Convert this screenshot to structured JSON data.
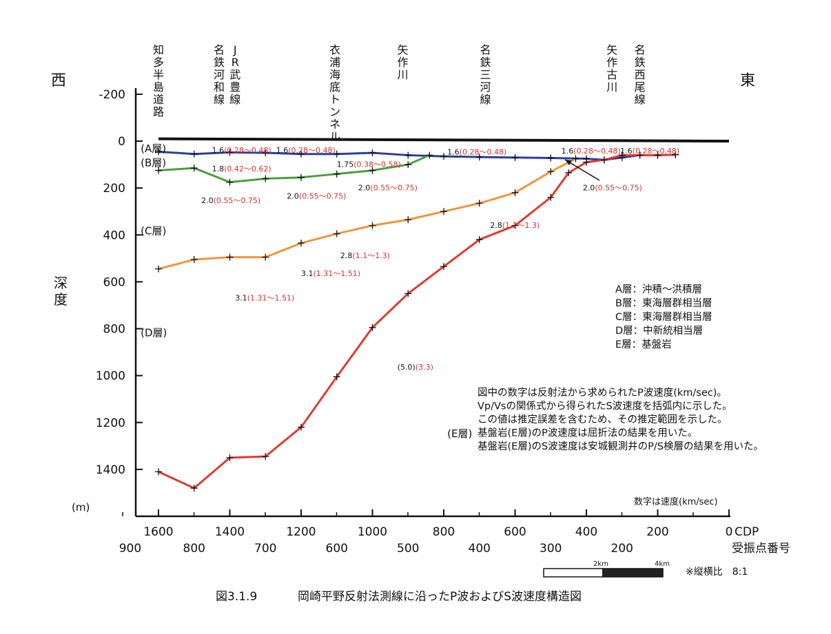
{
  "chart_data": {
    "type": "line",
    "title": "岡崎平野反射法測線に沿ったP波およびS波速度構造図",
    "figure_number": "図3.1.9",
    "ylabel": "深度",
    "yunit": "(m)",
    "ylim": [
      -200,
      1600
    ],
    "yticks": [
      "-200",
      "0",
      "200",
      "400",
      "600",
      "800",
      "1000",
      "1200",
      "1400"
    ],
    "xlim": [
      1600,
      0
    ],
    "x_axis_label": "CDP",
    "x_ticks_cdp": [
      "1600",
      "1400",
      "1200",
      "1000",
      "800",
      "600",
      "400",
      "200",
      "0"
    ],
    "x_axis_label2": "受振点番号",
    "x_ticks_shot": [
      "900",
      "800",
      "700",
      "600",
      "500",
      "400",
      "300",
      "200"
    ],
    "west_label": "西",
    "east_label": "東",
    "landmarks": [
      {
        "text": "知多半島道路",
        "x": 1600
      },
      {
        "text": "名鉄河和線",
        "x": 1430
      },
      {
        "text": "JR武豊線",
        "x": 1385
      },
      {
        "text": "衣浦海底トンネル",
        "x": 1105
      },
      {
        "text": "矢作川",
        "x": 915
      },
      {
        "text": "名鉄三河線",
        "x": 683
      },
      {
        "text": "矢作古川",
        "x": 328
      },
      {
        "text": "名鉄西尾線",
        "x": 250
      }
    ],
    "series": [
      {
        "color": "#111111",
        "x": [
          1600,
          0
        ],
        "y": [
          -10,
          0
        ]
      },
      {
        "color": "#2a3ca8",
        "x": [
          1600,
          1500,
          1400,
          1300,
          1200,
          1100,
          1000,
          900,
          800,
          700,
          600,
          500,
          400,
          350,
          300,
          250,
          200,
          150
        ],
        "y": [
          45,
          55,
          48,
          50,
          55,
          55,
          50,
          60,
          65,
          68,
          70,
          72,
          75,
          80,
          70,
          60,
          60,
          58
        ]
      },
      {
        "color": "#4a9e3a",
        "x": [
          1600,
          1500,
          1400,
          1300,
          1200,
          1100,
          1000,
          900,
          840
        ],
        "y": [
          125,
          115,
          175,
          160,
          155,
          140,
          125,
          100,
          60
        ]
      },
      {
        "color": "#f0953b",
        "x": [
          1600,
          1500,
          1400,
          1300,
          1200,
          1100,
          1000,
          900,
          800,
          700,
          600,
          500,
          430
        ],
        "y": [
          545,
          505,
          495,
          495,
          435,
          395,
          360,
          335,
          300,
          265,
          220,
          130,
          75
        ]
      },
      {
        "color": "#e03a2f",
        "x": [
          1600,
          1500,
          1400,
          1300,
          1200,
          1100,
          1000,
          900,
          800,
          700,
          600,
          500,
          450,
          400,
          350,
          300,
          250,
          200,
          150
        ],
        "y": [
          1410,
          1480,
          1350,
          1345,
          1220,
          1005,
          795,
          650,
          535,
          420,
          360,
          240,
          135,
          90,
          80,
          60,
          60,
          60,
          58
        ]
      }
    ],
    "layer_labels": [
      {
        "text": "(A層)",
        "x": 1650,
        "y": 30
      },
      {
        "text": "(B層)",
        "x": 1650,
        "y": 90
      },
      {
        "text": "(C層)",
        "x": 1650,
        "y": 380
      },
      {
        "text": "(D層)",
        "x": 1650,
        "y": 815
      },
      {
        "text": "(E層)",
        "x": 790,
        "y": 1245
      }
    ],
    "velocity_labels": [
      {
        "p": "1.6",
        "s": "(0.28～0.48)",
        "x": 1450,
        "y": 35
      },
      {
        "p": "1.6",
        "s": "(0.28～0.48)",
        "x": 1270,
        "y": 35
      },
      {
        "p": "1.8",
        "s": "(0.42～0.62)",
        "x": 1450,
        "y": 115
      },
      {
        "p": "1.75",
        "s": "(0.38～0.58)",
        "x": 1100,
        "y": 95
      },
      {
        "p": "2.0",
        "s": "(0.55～0.75)",
        "x": 1480,
        "y": 250
      },
      {
        "p": "2.0",
        "s": "(0.55～0.75)",
        "x": 1240,
        "y": 230
      },
      {
        "p": "2.0",
        "s": "(0.55～0.75)",
        "x": 1040,
        "y": 195
      },
      {
        "p": "1.6",
        "s": "(0.28～0.48)",
        "x": 790,
        "y": 42
      },
      {
        "p": "1.6",
        "s": "(0.28～0.48)",
        "x": 470,
        "y": 38
      },
      {
        "p": "1.6",
        "s": "(0.28～0.48)",
        "x": 305,
        "y": 38
      },
      {
        "p": "2.0",
        "s": "(0.55～0.75)",
        "x": 410,
        "y": 195
      },
      {
        "p": "2.8",
        "s": "(1.1～1.3)",
        "x": 670,
        "y": 355
      },
      {
        "p": "2.8",
        "s": "(1.1～1.3)",
        "x": 1090,
        "y": 485
      },
      {
        "p": "3.1",
        "s": "(1.31～1.51)",
        "x": 1200,
        "y": 560
      },
      {
        "p": "3.1",
        "s": "(1.31～1.51)",
        "x": 1385,
        "y": 665
      },
      {
        "p": "(5.0)",
        "s": "(3.3)",
        "x": 930,
        "y": 960
      }
    ],
    "legend_layers": [
      "A層：沖積～洪積層",
      "B層：東海層群相当層",
      "C層：東海層群相当層",
      "D層：中新統相当層",
      "E層：基盤岩"
    ],
    "notes": [
      "図中の数字は反射法から求められたP波速度(km/sec)。",
      "Vp/Vsの関係式から得られたS波速度を括弧内に示した。",
      "この値は推定誤差を含むため、その推定範囲を示した。",
      "基盤岩(E層)のP波速度は屈折法の結果を用いた。",
      "基盤岩(E層)のS波速度は安城観測井のP/S検層の結果を用いた。"
    ],
    "unit_note": "数字は速度(km/sec)",
    "scale_bar": {
      "labels": [
        "2km",
        "4km"
      ]
    },
    "aspect_note": "※縦横比　8:1"
  }
}
